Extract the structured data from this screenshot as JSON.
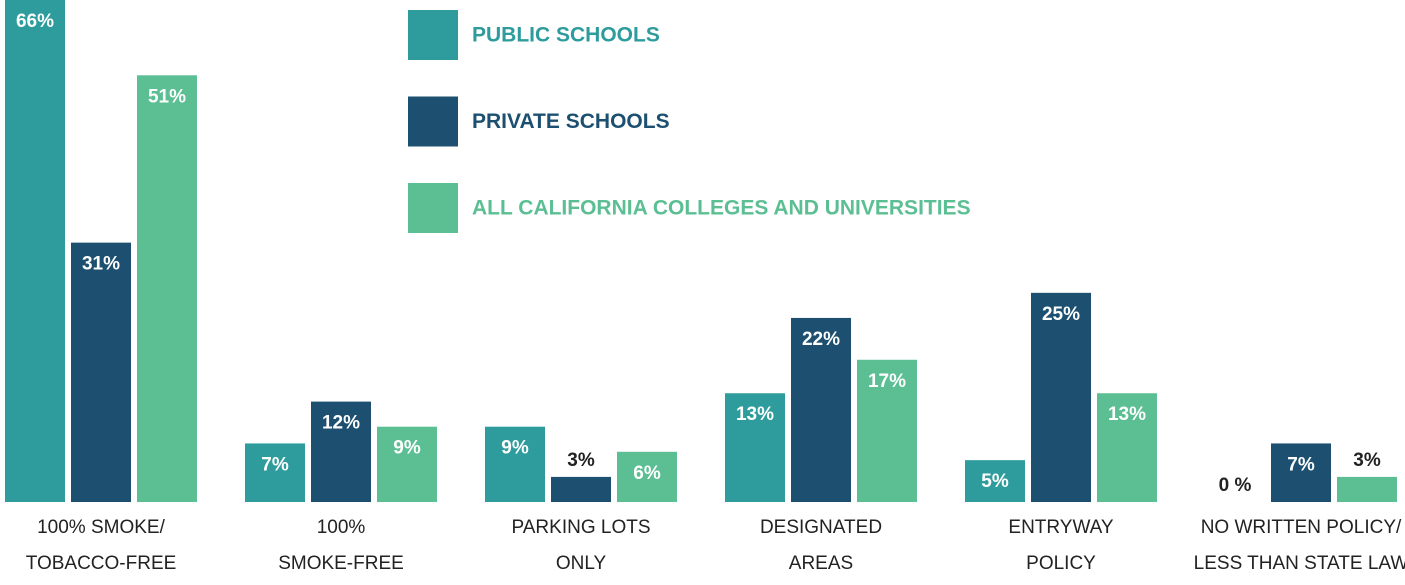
{
  "chart_data": {
    "type": "bar",
    "categories": [
      [
        "100% SMOKE/",
        "TOBACCO-FREE"
      ],
      [
        "100%",
        "SMOKE-FREE"
      ],
      [
        "PARKING LOTS",
        "ONLY"
      ],
      [
        "DESIGNATED",
        "AREAS"
      ],
      [
        "ENTRYWAY",
        "POLICY"
      ],
      [
        "NO WRITTEN POLICY/",
        "LESS THAN STATE LAW"
      ]
    ],
    "series": [
      {
        "name": "PUBLIC SCHOOLS",
        "color": "#2e9c9c",
        "values": [
          66,
          7,
          9,
          13,
          5,
          0
        ],
        "value_labels": [
          "66%",
          "7%",
          "9%",
          "13%",
          "5%",
          "0 %"
        ]
      },
      {
        "name": "PRIVATE SCHOOLS",
        "color": "#1d5070",
        "values": [
          31,
          12,
          3,
          22,
          25,
          7
        ],
        "value_labels": [
          "31%",
          "12%",
          "3%",
          "22%",
          "25%",
          "7%"
        ]
      },
      {
        "name": "ALL CALIFORNIA COLLEGES AND UNIVERSITIES",
        "color": "#5bbf93",
        "values": [
          51,
          9,
          6,
          17,
          13,
          3
        ],
        "value_labels": [
          "51%",
          "9%",
          "6%",
          "17%",
          "13%",
          "3%"
        ]
      }
    ],
    "ylim": [
      0,
      60
    ],
    "grid": false
  }
}
